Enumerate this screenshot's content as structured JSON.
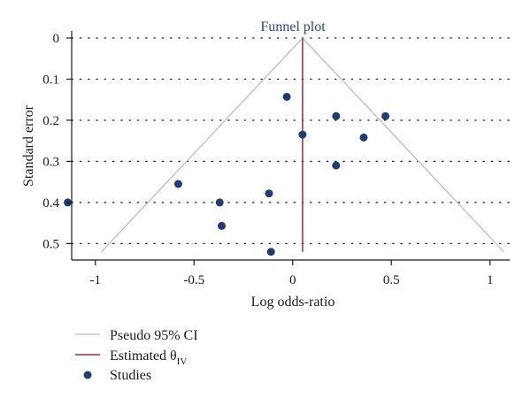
{
  "chart_data": {
    "type": "scatter",
    "title": "Funnel plot",
    "xlabel": "Log odds-ratio",
    "ylabel": "Standard error",
    "xlim": [
      -1.12,
      1.1
    ],
    "ylim": [
      0,
      0.54
    ],
    "y_reversed": true,
    "x_ticks": [
      -1,
      -0.5,
      0,
      0.5,
      1
    ],
    "x_tick_labels": [
      "-1",
      "-0.5",
      "0",
      "0.5",
      "1"
    ],
    "y_ticks": [
      0,
      0.1,
      0.2,
      0.3,
      0.4,
      0.5
    ],
    "y_tick_labels": [
      "0",
      "0.1",
      "0.2",
      "0.3",
      "0.4",
      "0.5"
    ],
    "grid": "horizontal dotted",
    "estimate": 0.05,
    "pseudo_ci_max_se": 0.52,
    "studies": [
      {
        "x": -1.14,
        "y": 0.4
      },
      {
        "x": -0.58,
        "y": 0.355
      },
      {
        "x": -0.37,
        "y": 0.4
      },
      {
        "x": -0.36,
        "y": 0.457
      },
      {
        "x": -0.12,
        "y": 0.378
      },
      {
        "x": -0.11,
        "y": 0.52
      },
      {
        "x": -0.03,
        "y": 0.143
      },
      {
        "x": 0.05,
        "y": 0.235
      },
      {
        "x": 0.22,
        "y": 0.19
      },
      {
        "x": 0.22,
        "y": 0.31
      },
      {
        "x": 0.36,
        "y": 0.242
      },
      {
        "x": 0.47,
        "y": 0.19
      }
    ],
    "legend": {
      "placement": "bottom-left",
      "ci_label": "Pseudo 95% CI",
      "estimate_label": "Estimated θ",
      "estimate_subscript": "IV",
      "studies_label": "Studies"
    },
    "colors": {
      "points": "#1f3d6e",
      "estimate_line": "#a0303a",
      "ci_lines": "#bdbdbd",
      "title": "#2c4a7a",
      "grid": "#222222"
    }
  }
}
